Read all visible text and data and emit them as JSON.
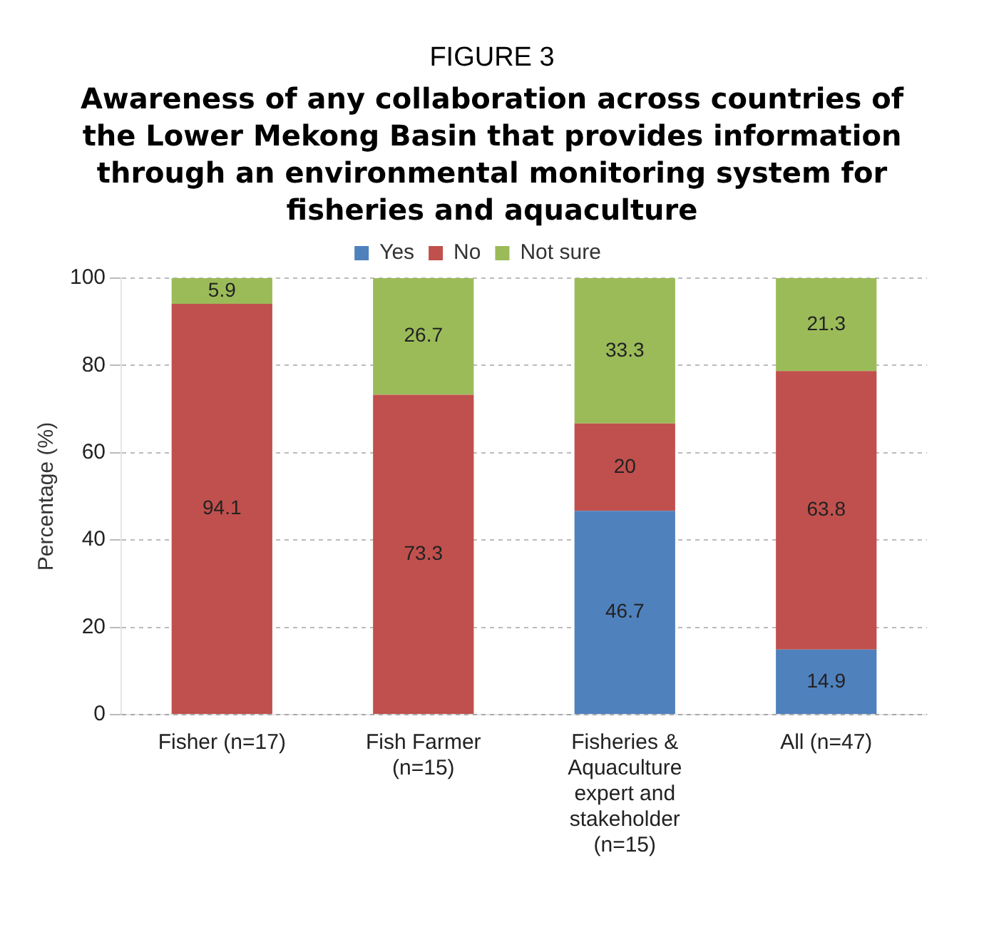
{
  "chart_data": {
    "type": "bar",
    "title": "FIGURE 3",
    "subtitle": "Awareness of any collaboration across countries of the Lower Mekong Basin that provides information through an environmental monitoring system for fisheries and aquaculture",
    "categories": [
      "Fisher (n=17)",
      "Fish Farmer (n=15)",
      "Fisheries & Aquaculture expert and stakeholder (n=15)",
      "All (n=47)"
    ],
    "series": [
      {
        "name": "Yes",
        "color": "#4f81bd",
        "values": [
          null,
          null,
          46.7,
          14.9
        ]
      },
      {
        "name": "No",
        "color": "#c0504d",
        "values": [
          94.1,
          73.3,
          20,
          63.8
        ]
      },
      {
        "name": "Not sure",
        "color": "#9bbb59",
        "values": [
          5.9,
          26.7,
          33.3,
          21.3
        ]
      }
    ],
    "stacked": true,
    "ylabel": "Percentage (%)",
    "ylim": [
      0,
      100
    ],
    "yticks": [
      0,
      20,
      40,
      60,
      80,
      100
    ],
    "grid": "y",
    "legend": "top",
    "data_labels": true
  }
}
